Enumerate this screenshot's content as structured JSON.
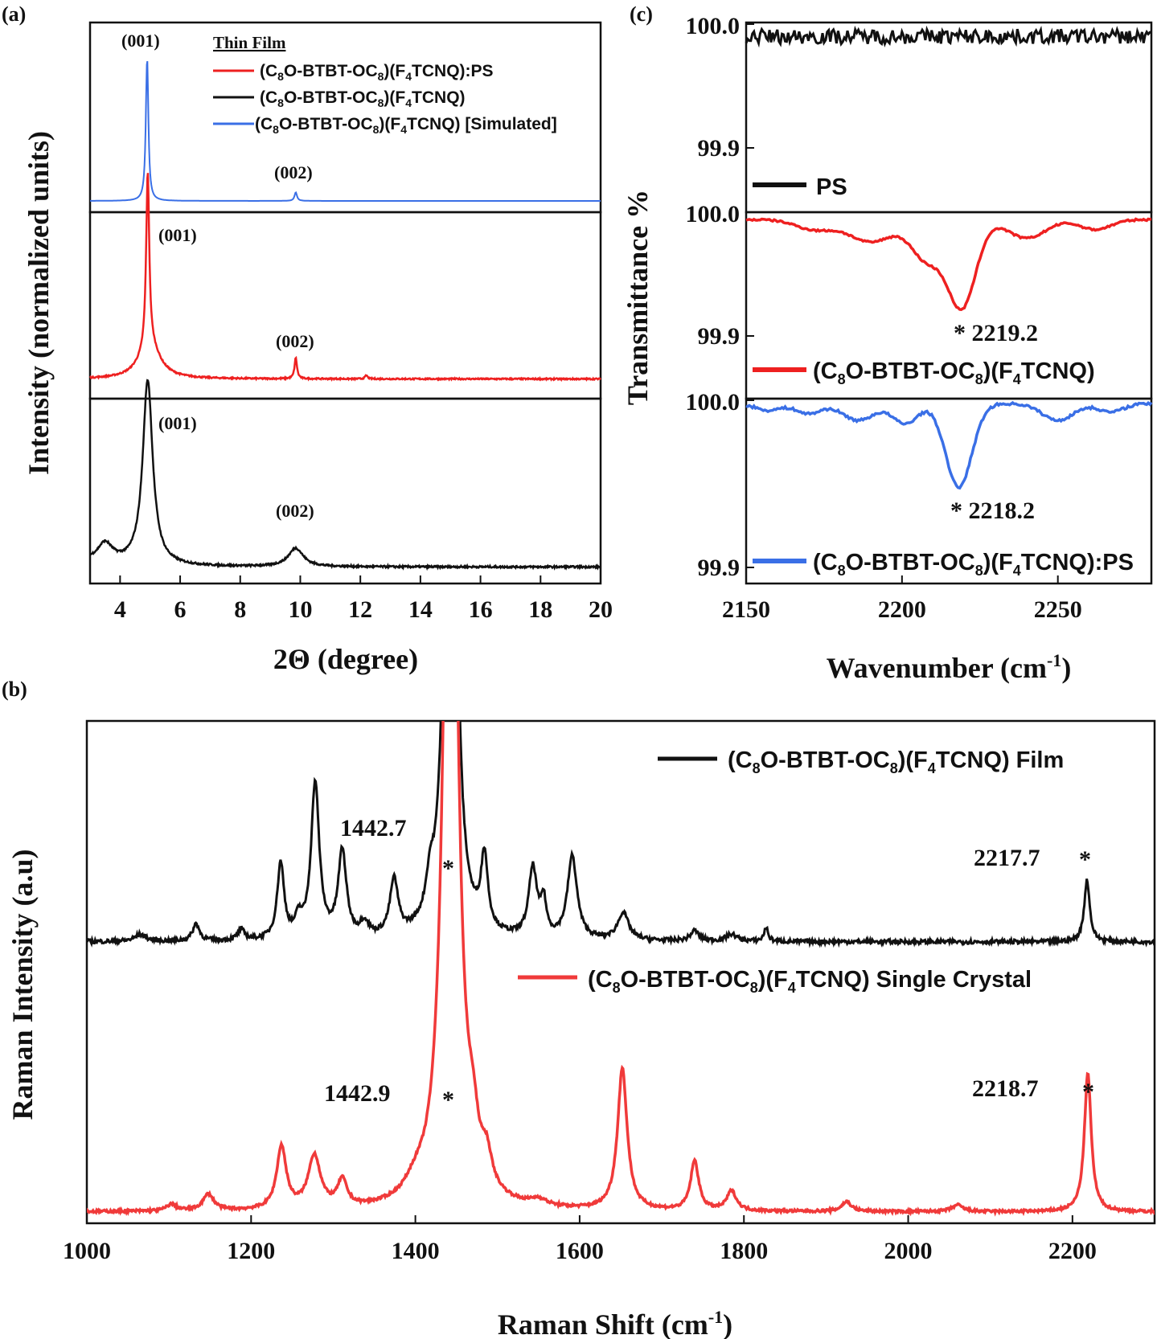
{
  "colors": {
    "black": "#111111",
    "red": "#ee2020",
    "blue": "#3a6fe6",
    "raman_red": "#f03a3a"
  },
  "chart_data": [
    {
      "panel": "(a)",
      "type": "line",
      "xlabel": "2Θ (degree)",
      "ylabel": "Intensity (normalized units)",
      "xlim": [
        3,
        20
      ],
      "x_ticks": [
        "4",
        "6",
        "8",
        "10",
        "12",
        "14",
        "16",
        "18",
        "20"
      ],
      "legend_title": "Thin Film",
      "legend": [
        {
          "name": "(C8O-BTBT-OC8)(F4TCNQ):PS",
          "color": "#ee2020"
        },
        {
          "name": "(C8O-BTBT-OC8)(F4TCNQ)",
          "color": "#111111"
        },
        {
          "name": "(C8O-BTBT-OC8)(F4TCNQ) [Simulated]",
          "color": "#3a6fe6"
        }
      ],
      "series": [
        {
          "key": "simulated",
          "color": "#3a6fe6",
          "peak_labels": [
            "(001)",
            "(002)"
          ],
          "baseline": 0.0,
          "peaks": [
            {
              "x": 4.9,
              "h": 1.0,
              "w": 0.05
            },
            {
              "x": 9.85,
              "h": 0.06,
              "w": 0.05
            }
          ]
        },
        {
          "key": "ps_film",
          "color": "#ee2020",
          "peak_labels": [
            "(001)",
            "(002)"
          ],
          "baseline": 0.03,
          "peaks": [
            {
              "x": 4.92,
              "h": 1.0,
              "w": 0.06
            },
            {
              "x": 4.98,
              "h": 0.2,
              "w": 0.4
            },
            {
              "x": 9.85,
              "h": 0.12,
              "w": 0.05
            },
            {
              "x": 12.2,
              "h": 0.02,
              "w": 0.05
            }
          ]
        },
        {
          "key": "film",
          "color": "#111111",
          "peak_labels": [
            "(001)",
            "(002)"
          ],
          "baseline": 0.02,
          "peaks": [
            {
              "x": 3.5,
              "h": 0.1,
              "w": 0.3
            },
            {
              "x": 4.92,
              "h": 1.0,
              "w": 0.2
            },
            {
              "x": 9.85,
              "h": 0.1,
              "w": 0.3
            }
          ]
        }
      ]
    },
    {
      "panel": "(b)",
      "type": "line",
      "xlabel": "Raman Shift (cm⁻¹)",
      "ylabel": "Raman Intensity (a.u)",
      "xlim": [
        1000,
        2300
      ],
      "x_ticks": [
        "1000",
        "1200",
        "1400",
        "1600",
        "1800",
        "2000",
        "2200"
      ],
      "series": [
        {
          "name": "(C8O-BTBT-OC8)(F4TCNQ) Film",
          "color": "#111111",
          "annotations": [
            {
              "x": 1442.7,
              "label": "1442.7",
              "marker": "*"
            },
            {
              "x": 2217.7,
              "label": "2217.7",
              "marker": "*"
            }
          ],
          "peaks": [
            {
              "x": 1065,
              "h": 0.02,
              "w": 8
            },
            {
              "x": 1133,
              "h": 0.05,
              "w": 5
            },
            {
              "x": 1188,
              "h": 0.03,
              "w": 5
            },
            {
              "x": 1236,
              "h": 0.22,
              "w": 5
            },
            {
              "x": 1258,
              "h": 0.05,
              "w": 5
            },
            {
              "x": 1278,
              "h": 0.45,
              "w": 6
            },
            {
              "x": 1311,
              "h": 0.25,
              "w": 6
            },
            {
              "x": 1338,
              "h": 0.04,
              "w": 6
            },
            {
              "x": 1374,
              "h": 0.16,
              "w": 6
            },
            {
              "x": 1418,
              "h": 0.1,
              "w": 6
            },
            {
              "x": 1442.7,
              "h": 3.0,
              "w": 6
            },
            {
              "x": 1484,
              "h": 0.21,
              "w": 5
            },
            {
              "x": 1543,
              "h": 0.2,
              "w": 6
            },
            {
              "x": 1556,
              "h": 0.1,
              "w": 4
            },
            {
              "x": 1591,
              "h": 0.24,
              "w": 7
            },
            {
              "x": 1653,
              "h": 0.08,
              "w": 8
            },
            {
              "x": 1740,
              "h": 0.03,
              "w": 6
            },
            {
              "x": 1785,
              "h": 0.02,
              "w": 8
            },
            {
              "x": 1827,
              "h": 0.04,
              "w": 3
            },
            {
              "x": 2217.7,
              "h": 0.18,
              "w": 4
            }
          ]
        },
        {
          "name": "(C8O-BTBT-OC8)(F4TCNQ) Single Crystal",
          "color": "#f03a3a",
          "annotations": [
            {
              "x": 1442.9,
              "label": "1442.9",
              "marker": "*"
            },
            {
              "x": 2218.7,
              "label": "2218.7",
              "marker": "*"
            }
          ],
          "peaks": [
            {
              "x": 1103,
              "h": 0.02,
              "w": 7
            },
            {
              "x": 1148,
              "h": 0.05,
              "w": 8
            },
            {
              "x": 1237,
              "h": 0.19,
              "w": 7
            },
            {
              "x": 1277,
              "h": 0.16,
              "w": 9
            },
            {
              "x": 1311,
              "h": 0.08,
              "w": 7
            },
            {
              "x": 1400,
              "h": 0.04,
              "w": 15
            },
            {
              "x": 1442.9,
              "h": 3.0,
              "w": 9
            },
            {
              "x": 1470,
              "h": 0.13,
              "w": 8
            },
            {
              "x": 1487,
              "h": 0.09,
              "w": 7
            },
            {
              "x": 1550,
              "h": 0.02,
              "w": 12
            },
            {
              "x": 1652,
              "h": 0.43,
              "w": 7
            },
            {
              "x": 1740,
              "h": 0.15,
              "w": 6
            },
            {
              "x": 1785,
              "h": 0.06,
              "w": 7
            },
            {
              "x": 1925,
              "h": 0.03,
              "w": 7
            },
            {
              "x": 2060,
              "h": 0.02,
              "w": 8
            },
            {
              "x": 2218.7,
              "h": 0.42,
              "w": 5
            }
          ]
        }
      ]
    },
    {
      "panel": "(c)",
      "type": "line",
      "xlabel": "Wavenumber (cm⁻¹)",
      "ylabel": "Transmittance %",
      "xlim": [
        2150,
        2280
      ],
      "x_ticks": [
        "2150",
        "2200",
        "2250"
      ],
      "y_ticks": [
        "100.0",
        "99.9"
      ],
      "series": [
        {
          "name": "PS",
          "color": "#111111",
          "baseline": 99.99,
          "peaks": []
        },
        {
          "name": "(C8O-BTBT-OC8)(F4TCNQ)",
          "color": "#ee2020",
          "annotation": "* 2219.2",
          "baseline": 99.994,
          "dips": [
            {
              "x": 2172,
              "d": 0.008,
              "w": 6
            },
            {
              "x": 2190,
              "d": 0.018,
              "w": 7
            },
            {
              "x": 2208,
              "d": 0.032,
              "w": 5
            },
            {
              "x": 2219.2,
              "d": 0.07,
              "w": 4.5
            },
            {
              "x": 2240,
              "d": 0.015,
              "w": 6
            },
            {
              "x": 2262,
              "d": 0.008,
              "w": 5
            }
          ]
        },
        {
          "name": "(C8O-BTBT-OC8)(F4TCNQ):PS",
          "color": "#3a6fe6",
          "annotation": "* 2218.2",
          "baseline": 99.998,
          "dips": [
            {
              "x": 2157,
              "d": 0.004,
              "w": 4
            },
            {
              "x": 2170,
              "d": 0.006,
              "w": 4
            },
            {
              "x": 2186,
              "d": 0.01,
              "w": 5
            },
            {
              "x": 2201,
              "d": 0.012,
              "w": 4
            },
            {
              "x": 2218.2,
              "d": 0.05,
              "w": 4.2
            },
            {
              "x": 2250,
              "d": 0.01,
              "w": 5
            },
            {
              "x": 2267,
              "d": 0.005,
              "w": 4
            }
          ]
        }
      ]
    }
  ],
  "labels": {
    "panel_a": "(a)",
    "panel_b": "(b)",
    "panel_c": "(c)",
    "a_xlabel": "2Θ (degree)",
    "a_ylabel": "Intensity (normalized units)",
    "a_legend_title": "Thin Film",
    "b_xlabel_main": "Raman Shift (cm",
    "b_ylabel": "Raman Intensity (a.u)",
    "c_xlabel_main": "Wavenumber (cm",
    "c_ylabel": "Transmittance %",
    "sup_minus1": "-1",
    "paren_close": ")",
    "p001": "(001)",
    "p002": "(002)",
    "b_film_peak1": "1442.7",
    "b_film_peak2": "2217.7",
    "b_crystal_peak1": "1442.9",
    "b_crystal_peak2": "2218.7",
    "star": "*",
    "c_red_ann": "* 2219.2",
    "c_blue_ann": "* 2218.2",
    "c_legend_ps": "PS"
  }
}
